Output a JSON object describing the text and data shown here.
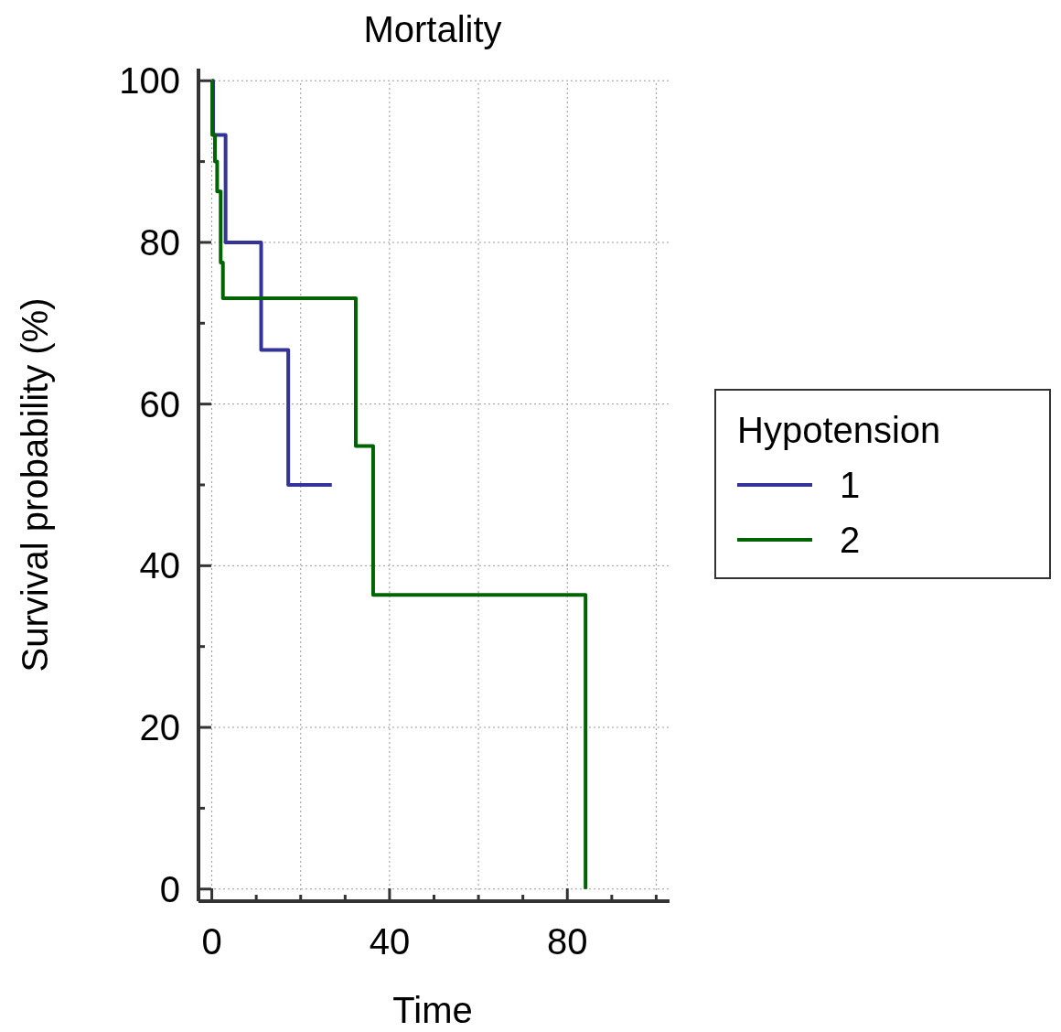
{
  "chart_data": {
    "type": "step",
    "title": "Mortality",
    "xlabel": "Time",
    "ylabel": "Survival probability (%)",
    "legend_title": "Hypotension",
    "legend": "right",
    "grid": true,
    "line_style": "solid",
    "xlim": [
      -3,
      103
    ],
    "ylim": [
      -1.5,
      101.5
    ],
    "xticks": [
      0,
      {
        "value": 10,
        "label": null
      },
      {
        "value": 20,
        "label": null
      },
      {
        "value": 30,
        "label": null
      },
      40,
      {
        "value": 50,
        "label": null
      },
      {
        "value": 60,
        "label": null
      },
      {
        "value": 70,
        "label": null
      },
      80,
      {
        "value": 90,
        "label": null
      },
      {
        "value": 100,
        "label": null
      }
    ],
    "yticks": [
      0,
      {
        "value": 10,
        "label": null
      },
      20,
      {
        "value": 30,
        "label": null
      },
      40,
      {
        "value": 50,
        "label": null
      },
      60,
      {
        "value": 70,
        "label": null
      },
      80,
      {
        "value": 90,
        "label": null
      },
      100
    ],
    "series": [
      {
        "name": "1",
        "color": "#33339a",
        "x": [
          0,
          0.3,
          3.1,
          11.1,
          17.2,
          27
        ],
        "values": [
          100,
          93.3,
          80,
          66.7,
          50,
          50
        ]
      },
      {
        "name": "2",
        "color": "#006400",
        "x": [
          0,
          0.1,
          0.7,
          1.2,
          2.0,
          2.5,
          32.4,
          36.3,
          84.1
        ],
        "values": [
          100,
          93.3,
          90,
          86.3,
          77.5,
          73.1,
          54.8,
          36.4,
          0
        ]
      }
    ]
  }
}
